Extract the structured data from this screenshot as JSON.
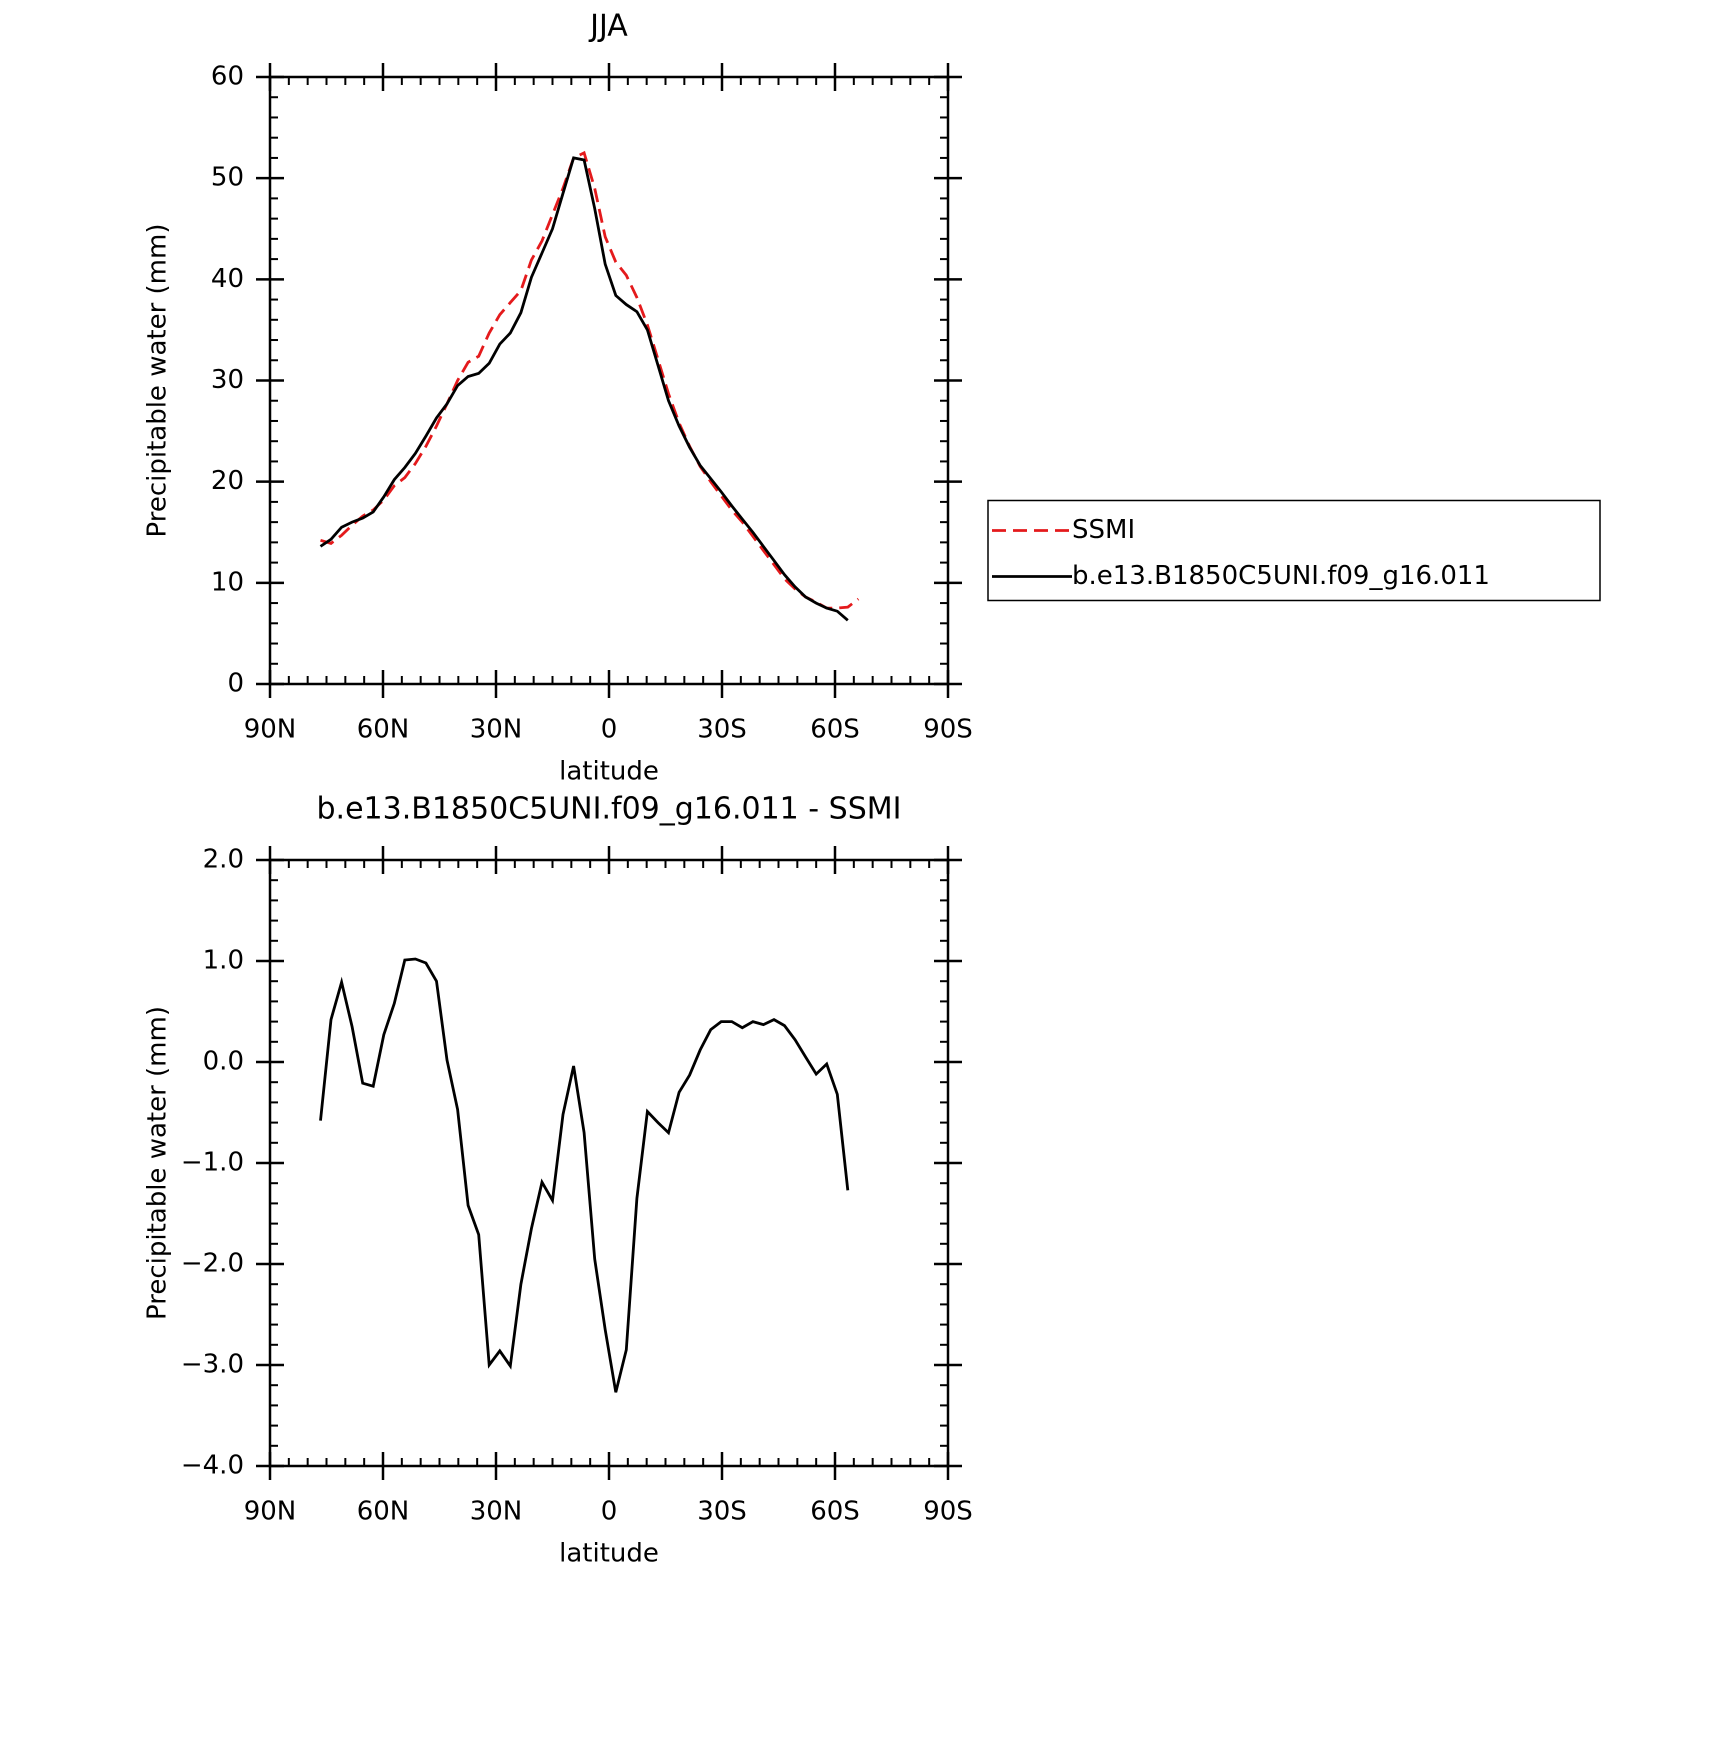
{
  "chart_data": [
    {
      "type": "line",
      "title": "JJA",
      "xlabel": "latitude",
      "ylabel": "Precipitable water (mm)",
      "x": [
        76.6,
        73.8,
        71.0,
        68.2,
        65.4,
        62.6,
        59.8,
        57.0,
        54.2,
        51.4,
        48.6,
        45.8,
        43.0,
        40.2,
        37.4,
        34.6,
        31.8,
        29.0,
        26.2,
        23.4,
        20.6,
        17.8,
        15.0,
        12.2,
        9.4,
        6.6,
        3.8,
        1.0,
        -1.8,
        -4.6,
        -7.4,
        -10.2,
        -13.0,
        -15.8,
        -18.6,
        -21.4,
        -24.2,
        -27.0,
        -29.8,
        -32.6,
        -35.4,
        -38.2,
        -41.0,
        -43.8,
        -46.6,
        -49.4,
        -52.2,
        -55.0,
        -57.8,
        -60.6,
        -63.4,
        -66.2
      ],
      "series": [
        {
          "name": "SSMI",
          "color": "#e41a1c",
          "dash": true,
          "values": [
            14.2,
            13.9,
            14.7,
            15.7,
            16.6,
            17.2,
            18.2,
            19.6,
            20.4,
            21.8,
            23.5,
            25.5,
            27.7,
            30.0,
            31.8,
            32.4,
            34.7,
            36.5,
            37.7,
            38.9,
            41.9,
            43.8,
            46.4,
            49.0,
            52.0,
            52.5,
            49.0,
            44.2,
            41.7,
            40.4,
            38.2,
            35.5,
            32.1,
            28.7,
            25.8,
            23.5,
            21.5,
            20.0,
            18.6,
            17.2,
            16.0,
            14.6,
            13.2,
            11.8,
            10.4,
            9.4,
            8.6,
            8.1,
            7.5,
            7.5,
            7.6,
            8.4
          ]
        },
        {
          "name": "b.e13.B1850C5UNI.f09_g16.011",
          "color": "#000000",
          "dash": false,
          "values": [
            13.6,
            14.3,
            15.5,
            16,
            16.4,
            17,
            18.5,
            20.2,
            21.4,
            22.8,
            24.5,
            26.3,
            27.7,
            29.5,
            30.4,
            30.7,
            31.7,
            33.6,
            34.7,
            36.7,
            40.2,
            42.6,
            45,
            48.5,
            52,
            51.8,
            47,
            41.5,
            38.4,
            37.5,
            36.8,
            35,
            31.5,
            28,
            25.5,
            23.4,
            21.6,
            20.3,
            19,
            17.6,
            16.3,
            15,
            13.6,
            12.2,
            10.8,
            9.6,
            8.6,
            8,
            7.5,
            7.2,
            6.3,
            null
          ]
        }
      ],
      "xlim": [
        90,
        -90
      ],
      "xticks": [
        {
          "value": 90,
          "label": "90N"
        },
        {
          "value": 60,
          "label": "60N"
        },
        {
          "value": 30,
          "label": "30N"
        },
        0,
        {
          "value": -30,
          "label": "30S"
        },
        {
          "value": -60,
          "label": "60S"
        },
        {
          "value": -90,
          "label": "90S"
        }
      ],
      "ylim": [
        0,
        60
      ],
      "yticks": [
        0,
        10,
        20,
        30,
        40,
        50,
        60
      ],
      "legend": "right"
    },
    {
      "type": "line",
      "title": "b.e13.B1850C5UNI.f09_g16.011 - SSMI",
      "xlabel": "latitude",
      "ylabel": "Precipitable water (mm)",
      "x": [
        76.6,
        73.8,
        71.0,
        68.2,
        65.4,
        62.6,
        59.8,
        57.0,
        54.2,
        51.4,
        48.6,
        45.8,
        43.0,
        40.2,
        37.4,
        34.6,
        31.8,
        29.0,
        26.2,
        23.4,
        20.6,
        17.8,
        15.0,
        12.2,
        9.4,
        6.6,
        3.8,
        1.0,
        -1.8,
        -4.6,
        -7.4,
        -10.2,
        -13.0,
        -15.8,
        -18.6,
        -21.4,
        -24.2,
        -27.0,
        -29.8,
        -32.6,
        -35.4,
        -38.2,
        -41.0,
        -43.8,
        -46.6,
        -49.4,
        -52.2,
        -55.0,
        -57.8,
        -60.6,
        -63.4
      ],
      "series": [
        {
          "color": "#000000",
          "dash": false,
          "values": [
            -0.58,
            0.42,
            0.79,
            0.35,
            -0.21,
            -0.24,
            0.27,
            0.58,
            1.01,
            1.02,
            0.98,
            0.8,
            0.02,
            -0.47,
            -1.42,
            -1.71,
            -3.0,
            -2.86,
            -3.01,
            -2.2,
            -1.65,
            -1.19,
            -1.37,
            -0.52,
            -0.04,
            -0.7,
            -1.95,
            -2.65,
            -3.27,
            -2.85,
            -1.35,
            -0.49,
            -0.6,
            -0.7,
            -0.3,
            -0.13,
            0.12,
            0.32,
            0.4,
            0.4,
            0.34,
            0.4,
            0.37,
            0.42,
            0.36,
            0.22,
            0.05,
            -0.12,
            -0.02,
            -0.32,
            -1.27
          ]
        }
      ],
      "xlim": [
        90,
        -90
      ],
      "xticks": [
        {
          "value": 90,
          "label": "90N"
        },
        {
          "value": 60,
          "label": "60N"
        },
        {
          "value": 30,
          "label": "30N"
        },
        0,
        {
          "value": -30,
          "label": "30S"
        },
        {
          "value": -60,
          "label": "60S"
        },
        {
          "value": -90,
          "label": "90S"
        }
      ],
      "ylim": [
        -4,
        2
      ],
      "yticks": [
        {
          "value": -4,
          "label": "−4.0"
        },
        {
          "value": -3,
          "label": "−3.0"
        },
        {
          "value": -2,
          "label": "−2.0"
        },
        {
          "value": -1,
          "label": "−1.0"
        },
        {
          "value": 0,
          "label": "0.0"
        },
        {
          "value": 1,
          "label": "1.0"
        },
        {
          "value": 2,
          "label": "2.0"
        }
      ]
    }
  ]
}
